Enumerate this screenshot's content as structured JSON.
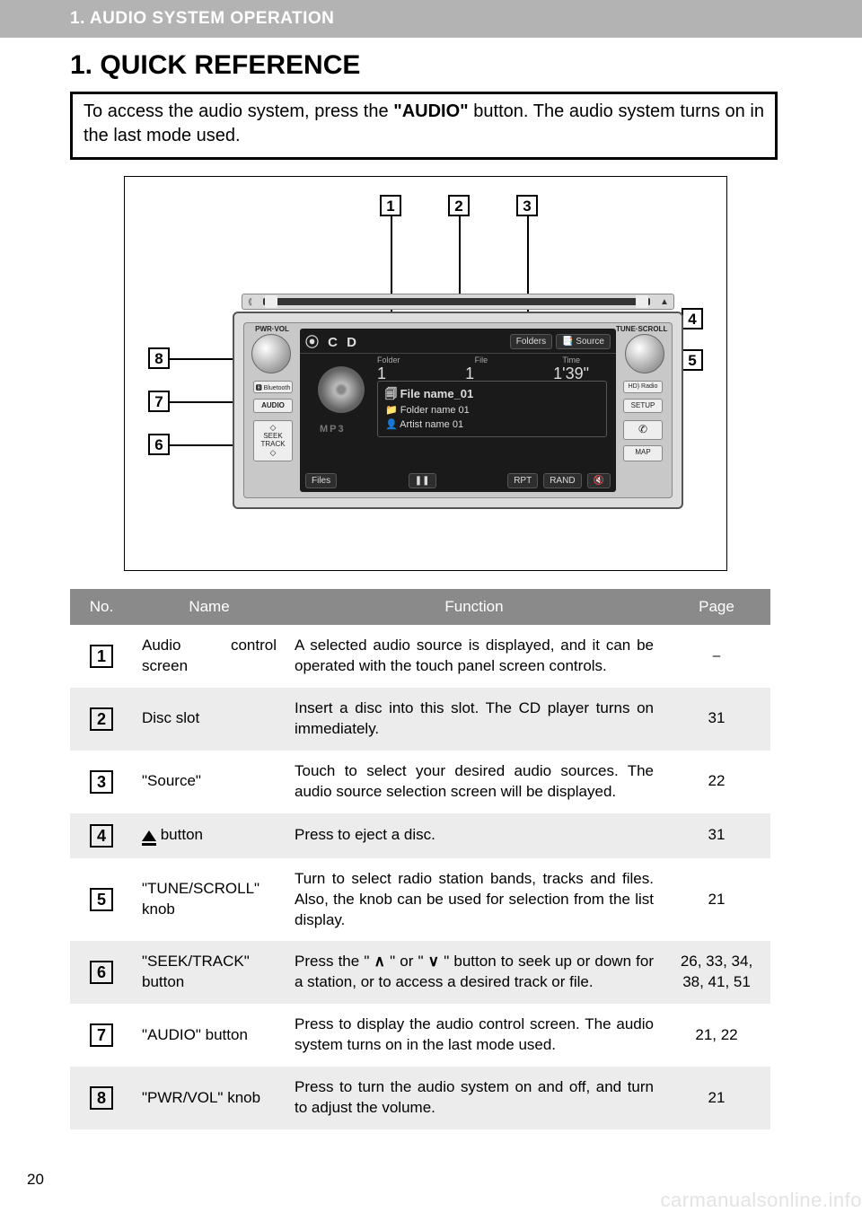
{
  "header": {
    "section": "1. AUDIO SYSTEM OPERATION",
    "title": "1. QUICK REFERENCE"
  },
  "instruction": {
    "pre": "To access the audio system, press the ",
    "bold": "\"AUDIO\"",
    "post": " button. The audio system turns on in the last mode used."
  },
  "device": {
    "pwr_vol": "PWR·VOL",
    "tune_scroll": "TUNE·SCROLL",
    "bluetooth": "🅱 Bluetooth",
    "audio": "AUDIO",
    "seek1": "◇",
    "seek2": "SEEK",
    "seek3": "TRACK",
    "seek4": "◇",
    "hd": "HD) Radio",
    "setup": "SETUP",
    "phone": "✆",
    "map": "MAP",
    "eject": "▲",
    "screen": {
      "cd": "⦿ C D",
      "folders_btn": "Folders",
      "source_btn": "📑 Source",
      "lbl_folder": "Folder",
      "lbl_file": "File",
      "lbl_time": "Time",
      "val_folder": "1",
      "val_file": "1",
      "val_time": "1'39\"",
      "file_name": "🗐 File name_01",
      "folder_name": "📁 Folder name 01",
      "artist_name": "👤 Artist name 01",
      "mp3": "MP3",
      "files_btn": "Files",
      "pause": "❚❚",
      "rpt": "RPT",
      "rand": "RAND",
      "mute": "🔇"
    }
  },
  "callouts": {
    "n1": "1",
    "n2": "2",
    "n3": "3",
    "n4": "4",
    "n5": "5",
    "n6": "6",
    "n7": "7",
    "n8": "8"
  },
  "table": {
    "headers": {
      "no": "No.",
      "name": "Name",
      "function": "Function",
      "page": "Page"
    },
    "rows": [
      {
        "no": "1",
        "name_pre": "Audio",
        "name_post": "control",
        "name_line2": "screen",
        "name_justify": true,
        "func": "A selected audio source is displayed, and it can be operated with the touch panel screen controls.",
        "page": "⎯"
      },
      {
        "no": "2",
        "name": "Disc slot",
        "func": "Insert a disc into this slot. The CD player turns on immediately.",
        "page": "31"
      },
      {
        "no": "3",
        "name": "\"Source\"",
        "func": "Touch to select your desired audio sources. The audio source selection screen will be displayed.",
        "page": "22"
      },
      {
        "no": "4",
        "name_icon": "eject",
        "name_after": " button",
        "func": "Press to eject a disc.",
        "page": "31"
      },
      {
        "no": "5",
        "name": "\"TUNE/SCROLL\" knob",
        "func": "Turn to select radio station bands, tracks and files. Also, the knob can be used for selection from the list display.",
        "page": "21"
      },
      {
        "no": "6",
        "name": "\"SEEK/TRACK\" button",
        "func_html": "Press the \" ∧ \" or \" ∨ \" button to seek up or down for a station, or to access a desired track or file.",
        "page": "26, 33, 34, 38, 41, 51"
      },
      {
        "no": "7",
        "name": "\"AUDIO\" button",
        "func": "Press to display the audio control screen. The audio system turns on in the last mode used.",
        "page": "21, 22"
      },
      {
        "no": "8",
        "name": "\"PWR/VOL\" knob",
        "func": "Press to turn the audio system on and off, and turn to adjust the volume.",
        "page": "21"
      }
    ]
  },
  "page_number": "20",
  "watermark": "carmanualsonline.info"
}
